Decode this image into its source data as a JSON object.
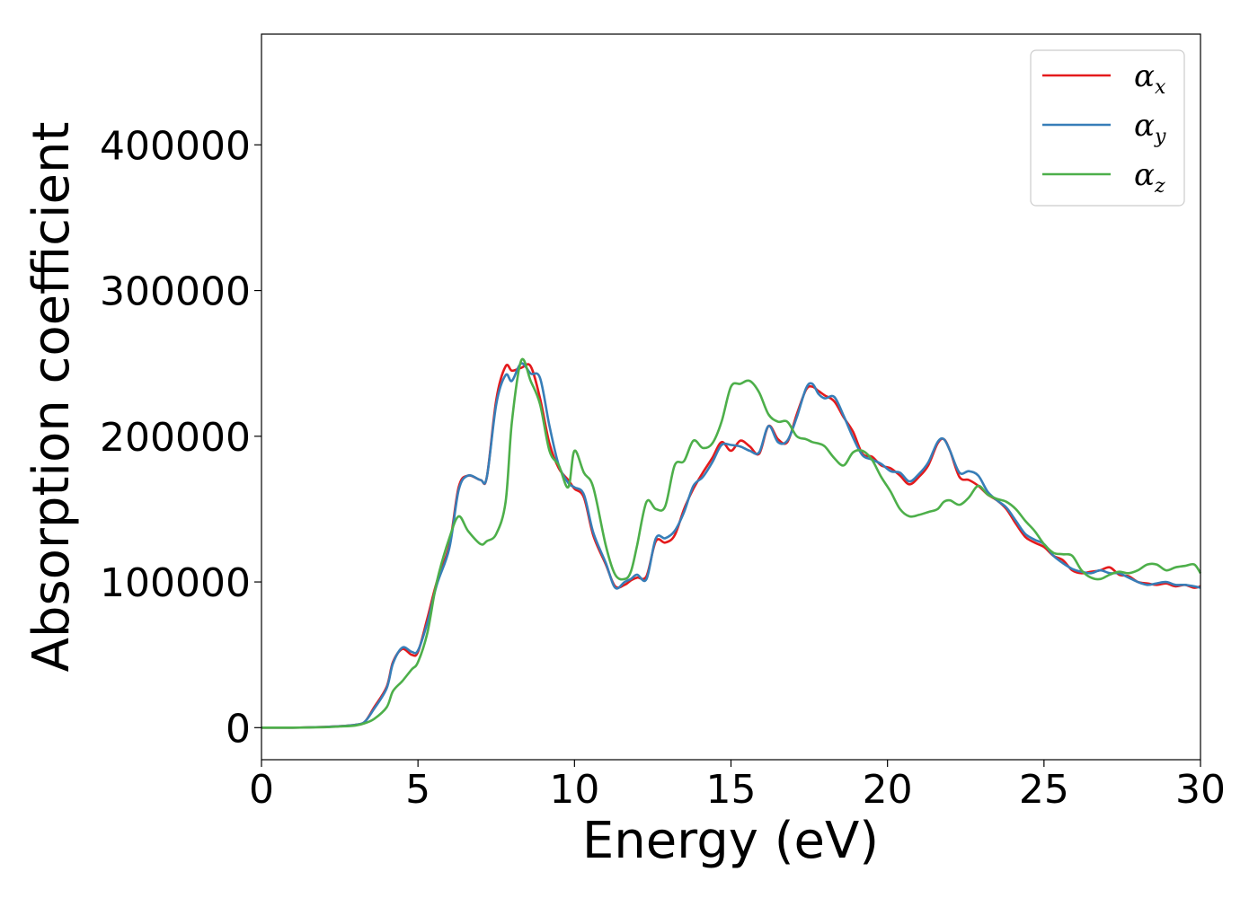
{
  "chart_data": {
    "type": "line",
    "xlabel": "Energy (eV)",
    "ylabel": "Absorption coefficient",
    "xlim": [
      0,
      30
    ],
    "ylim": [
      -22000,
      476000
    ],
    "xticks": [
      0,
      5,
      10,
      15,
      20,
      25,
      30
    ],
    "yticks": [
      0,
      100000,
      200000,
      300000,
      400000
    ],
    "xtick_labels": [
      "0",
      "5",
      "10",
      "15",
      "20",
      "25",
      "30"
    ],
    "ytick_labels": [
      "0",
      "100000",
      "200000",
      "300000",
      "400000"
    ],
    "grid": false,
    "legend": "top-right",
    "series": [
      {
        "name": "αx",
        "symbol": "α",
        "sub": "x",
        "color": "#e41a1c",
        "x": [
          0,
          1,
          2,
          2.5,
          3,
          3.3,
          3.6,
          4,
          4.2,
          4.5,
          4.8,
          5,
          5.3,
          5.6,
          6,
          6.3,
          6.6,
          7,
          7.2,
          7.5,
          7.8,
          8,
          8.3,
          8.6,
          8.9,
          9.2,
          9.5,
          9.8,
          10,
          10.3,
          10.6,
          11,
          11.3,
          11.6,
          11.8,
          12,
          12.3,
          12.6,
          12.9,
          13.2,
          13.5,
          13.8,
          14.1,
          14.4,
          14.7,
          15,
          15.3,
          15.6,
          15.9,
          16.2,
          16.5,
          16.8,
          17.1,
          17.4,
          17.6,
          17.8,
          18,
          18.3,
          18.6,
          18.9,
          19.2,
          19.5,
          19.8,
          20.1,
          20.4,
          20.7,
          21,
          21.3,
          21.6,
          21.8,
          22,
          22.3,
          22.6,
          22.9,
          23.2,
          23.5,
          23.8,
          24.1,
          24.4,
          24.7,
          25,
          25.3,
          25.6,
          25.9,
          26.2,
          26.5,
          26.8,
          27.1,
          27.4,
          27.7,
          28,
          28.3,
          28.6,
          28.9,
          29.2,
          29.5,
          29.8,
          30
        ],
        "y": [
          0,
          0,
          500,
          1000,
          2000,
          4000,
          14000,
          28000,
          45000,
          54000,
          50000,
          52000,
          75000,
          100000,
          125000,
          165000,
          173000,
          170000,
          172000,
          225000,
          248000,
          245000,
          247000,
          248000,
          226000,
          195000,
          178000,
          170000,
          164000,
          158000,
          132000,
          112000,
          97000,
          98000,
          101000,
          103000,
          104000,
          128000,
          127000,
          132000,
          150000,
          164000,
          175000,
          185000,
          196000,
          190000,
          197000,
          193000,
          188000,
          207000,
          198000,
          196000,
          215000,
          232000,
          234000,
          231000,
          228000,
          224000,
          213000,
          203000,
          188000,
          186000,
          180000,
          178000,
          173000,
          167000,
          172000,
          180000,
          195000,
          198000,
          190000,
          172000,
          170000,
          166000,
          160000,
          156000,
          150000,
          140000,
          131000,
          127000,
          124000,
          118000,
          115000,
          108000,
          106000,
          107000,
          108000,
          110000,
          105000,
          104000,
          100000,
          99000,
          98000,
          99000,
          97000,
          98000,
          96000,
          97000
        ]
      },
      {
        "name": "αy",
        "symbol": "α",
        "sub": "y",
        "color": "#377eb8",
        "x": [
          0,
          1,
          2,
          2.5,
          3,
          3.3,
          3.6,
          4,
          4.2,
          4.5,
          4.8,
          5,
          5.3,
          5.6,
          6,
          6.3,
          6.6,
          7,
          7.2,
          7.5,
          7.8,
          8,
          8.3,
          8.6,
          8.9,
          9.2,
          9.5,
          9.8,
          10,
          10.3,
          10.6,
          11,
          11.3,
          11.6,
          11.8,
          12,
          12.3,
          12.6,
          12.9,
          13.2,
          13.5,
          13.8,
          14.1,
          14.4,
          14.7,
          15,
          15.3,
          15.6,
          15.9,
          16.2,
          16.5,
          16.8,
          17.1,
          17.4,
          17.6,
          17.8,
          18,
          18.3,
          18.6,
          18.9,
          19.2,
          19.5,
          19.8,
          20.1,
          20.4,
          20.7,
          21,
          21.3,
          21.6,
          21.8,
          22,
          22.3,
          22.6,
          22.9,
          23.2,
          23.5,
          23.8,
          24.1,
          24.4,
          24.7,
          25,
          25.3,
          25.6,
          25.9,
          26.2,
          26.5,
          26.8,
          27.1,
          27.4,
          27.7,
          28,
          28.3,
          28.6,
          28.9,
          29.2,
          29.5,
          29.8,
          30
        ],
        "y": [
          0,
          0,
          500,
          1000,
          2000,
          4000,
          13000,
          27000,
          44000,
          55000,
          52000,
          53000,
          72000,
          98000,
          123000,
          163000,
          173000,
          170000,
          172000,
          222000,
          242000,
          238000,
          250000,
          243000,
          240000,
          207000,
          180000,
          168000,
          165000,
          160000,
          134000,
          113000,
          96000,
          100000,
          102000,
          105000,
          102000,
          130000,
          130000,
          135000,
          148000,
          166000,
          172000,
          182000,
          194000,
          194000,
          193000,
          190000,
          189000,
          207000,
          196000,
          197000,
          213000,
          233000,
          236000,
          229000,
          226000,
          227000,
          214000,
          199000,
          187000,
          184000,
          181000,
          176000,
          175000,
          169000,
          174000,
          182000,
          196000,
          198000,
          190000,
          175000,
          176000,
          173000,
          162000,
          156000,
          151000,
          142000,
          133000,
          129000,
          126000,
          118000,
          113000,
          109000,
          107000,
          106000,
          108000,
          106000,
          106000,
          103000,
          100000,
          98000,
          99000,
          100000,
          98000,
          98000,
          97000,
          96000
        ]
      },
      {
        "name": "αz",
        "symbol": "α",
        "sub": "z",
        "color": "#4daf4a",
        "x": [
          0,
          1,
          2,
          2.5,
          3,
          3.3,
          3.6,
          4,
          4.2,
          4.5,
          4.8,
          5,
          5.3,
          5.6,
          6,
          6.3,
          6.6,
          7,
          7.2,
          7.5,
          7.8,
          8,
          8.3,
          8.6,
          8.9,
          9.2,
          9.5,
          9.8,
          10,
          10.3,
          10.6,
          11,
          11.3,
          11.6,
          11.8,
          12,
          12.3,
          12.6,
          12.9,
          13.2,
          13.5,
          13.8,
          14.1,
          14.4,
          14.7,
          15,
          15.3,
          15.6,
          15.9,
          16.2,
          16.5,
          16.8,
          17.1,
          17.4,
          17.6,
          17.8,
          18,
          18.3,
          18.6,
          18.9,
          19.2,
          19.5,
          19.8,
          20.1,
          20.4,
          20.7,
          21,
          21.3,
          21.6,
          21.8,
          22,
          22.3,
          22.6,
          22.9,
          23.2,
          23.5,
          23.8,
          24.1,
          24.4,
          24.7,
          25,
          25.3,
          25.6,
          25.9,
          26.2,
          26.5,
          26.8,
          27.1,
          27.4,
          27.7,
          28,
          28.3,
          28.6,
          28.9,
          29.2,
          29.5,
          29.8,
          30
        ],
        "y": [
          0,
          0,
          300,
          800,
          1500,
          3000,
          6000,
          14000,
          25000,
          32000,
          40000,
          45000,
          65000,
          100000,
          130000,
          145000,
          135000,
          126000,
          128000,
          133000,
          155000,
          210000,
          252000,
          238000,
          222000,
          190000,
          180000,
          165000,
          190000,
          175000,
          165000,
          125000,
          105000,
          102000,
          107000,
          125000,
          155000,
          150000,
          152000,
          180000,
          183000,
          197000,
          192000,
          195000,
          210000,
          234000,
          236000,
          238000,
          230000,
          215000,
          210000,
          210000,
          200000,
          198000,
          196000,
          195000,
          193000,
          185000,
          180000,
          189000,
          190000,
          184000,
          172000,
          162000,
          150000,
          145000,
          146000,
          148000,
          150000,
          155000,
          156000,
          153000,
          158000,
          166000,
          160000,
          157000,
          155000,
          150000,
          142000,
          135000,
          126000,
          120000,
          119000,
          118000,
          108000,
          103000,
          102000,
          105000,
          107000,
          106000,
          108000,
          112000,
          112000,
          108000,
          110000,
          111000,
          112000,
          106000
        ]
      }
    ]
  }
}
